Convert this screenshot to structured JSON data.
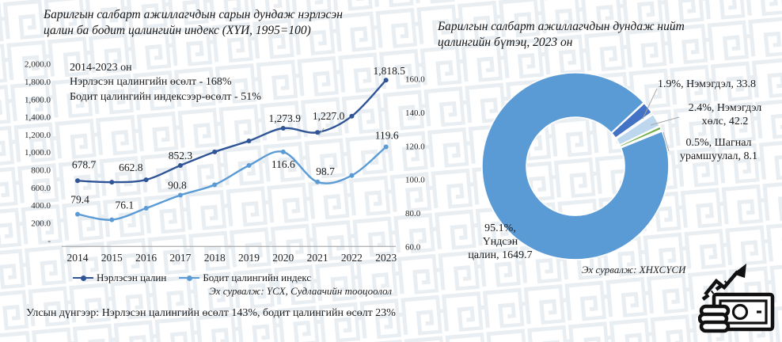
{
  "left_chart": {
    "title": "Барилгын салбарт ажиллагчдын сарын дундаж нэрлэсэн\nцалин ба бодит цалингийн индекс (ХҮИ, 1995=100)",
    "annotation": "2014-2023 он\nНэрлэсэн цалингийн өсөлт - 168%\nБодит цалингийн индексээр-өсөлт - 51%",
    "source": "Эх сурвалж: ҮСХ, Судлаачийн тооцоолол"
  },
  "right_chart": {
    "title": "Барилгын салбарт ажиллагчдын дундаж нийт\nцалингийн бүтэц, 2023 он",
    "source": "Эх сурвалж: ХНХСҮСИ",
    "slice_labels": {
      "nemegdel": "1.9%, Нэмэгдэл, 33.8",
      "nemegdel_huls": "2.4%, Нэмэгдэл\nхөлс, 42.2",
      "shagnal": "0.5%, Шагнал\nурамшуулал, 8.1",
      "undsen": "95.1%,\nҮндсэн\nцалин, 1649.7"
    }
  },
  "footnote": "Улсын дүнгээр: Нэрлэсэн цалингийн өсөлт 143%, бодит цалингийн өсөлт 23%",
  "icons": {
    "money_growth": "money-growth-icon"
  },
  "colors": {
    "nominal_line": "#2F5597",
    "real_line": "#5B9BD5",
    "donut_main": "#5B9BD5",
    "donut_nemegdel": "#4472C4",
    "donut_nemegdel_huls": "#BDD7EE",
    "donut_shagnal": "#70AD47",
    "axis_text": "#262626",
    "leader_line": "#a6a6a6"
  },
  "chart_data": [
    {
      "type": "line",
      "title": "Барилгын салбарт ажиллагчдын сарын дундаж нэрлэсэн цалин ба бодит цалингийн индекс (ХҮИ, 1995=100)",
      "categories": [
        "2014",
        "2015",
        "2016",
        "2017",
        "2018",
        "2019",
        "2020",
        "2021",
        "2022",
        "2023"
      ],
      "series": [
        {
          "name": "Нэрлэсэн цалин",
          "axis": "left",
          "color": "#2F5597",
          "values": [
            678.7,
            662.8,
            690,
            852.3,
            1005,
            1130,
            1273.9,
            1227.0,
            1410,
            1818.5
          ],
          "point_labels": [
            "678.7",
            "662.8",
            null,
            "852.3",
            null,
            null,
            "1,273.9",
            "1,227.0",
            null,
            "1,818.5"
          ]
        },
        {
          "name": "Бодит цалингийн индекс",
          "axis": "right",
          "color": "#5B9BD5",
          "values": [
            79.4,
            76.1,
            83,
            90.8,
            97,
            108.5,
            116.6,
            98.7,
            102.5,
            119.6
          ],
          "point_labels": [
            "79.4",
            "76.1",
            null,
            "90.8",
            null,
            null,
            "116.6",
            "98.7",
            null,
            "119.6"
          ]
        }
      ],
      "left_axis": {
        "min": 0,
        "max": 2000,
        "ticks": [
          "2,000.0",
          "1,800.0",
          "1,600.0",
          "1,400.0",
          "1,200.0",
          "1,000.0",
          "800.0",
          "600.0",
          "400.0",
          "200.0",
          "-"
        ]
      },
      "right_axis": {
        "min": 60,
        "max": 160,
        "ticks": [
          "160.0",
          "140.0",
          "120.0",
          "100.0",
          "80.0",
          "60.0"
        ]
      },
      "grid": false,
      "legend_position": "bottom"
    },
    {
      "type": "pie",
      "donut": true,
      "title": "Барилгын салбарт ажиллагчдын дундаж нийт цалингийн бүтэц, 2023 он",
      "slices": [
        {
          "name": "Үндсэн цалин",
          "percent": 95.1,
          "value": 1649.7,
          "color": "#5B9BD5"
        },
        {
          "name": "Нэмэгдэл",
          "percent": 1.9,
          "value": 33.8,
          "color": "#4472C4"
        },
        {
          "name": "Нэмэгдэл хөлс",
          "percent": 2.4,
          "value": 42.2,
          "color": "#BDD7EE"
        },
        {
          "name": "Шагнал урамшуулал",
          "percent": 0.5,
          "value": 8.1,
          "color": "#70AD47"
        }
      ]
    }
  ]
}
